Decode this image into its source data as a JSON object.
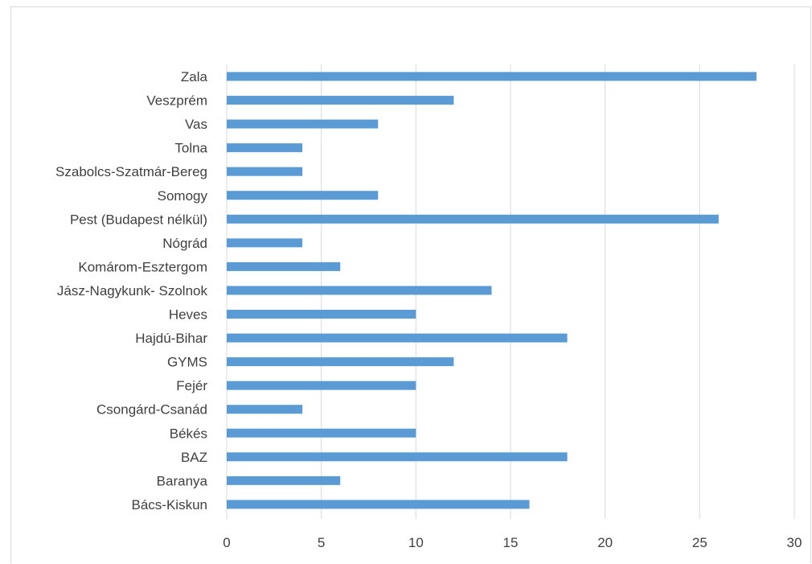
{
  "chart_data": {
    "type": "bar",
    "orientation": "horizontal",
    "title": "",
    "xlabel": "",
    "ylabel": "",
    "categories": [
      "Zala",
      "Veszprém",
      "Vas",
      "Tolna",
      "Szabolcs-Szatmár-Bereg",
      "Somogy",
      "Pest (Budapest nélkül)",
      "Nógrád",
      "Komárom-Esztergom",
      "Jász-Nagykunk- Szolnok",
      "Heves",
      "Hajdú-Bihar",
      "GYMS",
      "Fejér",
      "Csongárd-Csanád",
      "Békés",
      "BAZ",
      "Baranya",
      "Bács-Kiskun"
    ],
    "values": [
      28,
      12,
      8,
      4,
      4,
      8,
      26,
      4,
      6,
      14,
      10,
      18,
      12,
      10,
      4,
      10,
      18,
      6,
      16
    ],
    "xlim": [
      0,
      30
    ],
    "xticks": [
      "0",
      "5",
      "10",
      "15",
      "20",
      "25",
      "30"
    ],
    "grid": "vertical",
    "legend": "none",
    "bar_color": "#5b9bd5",
    "grid_color": "#d9d9d9",
    "text_color": "#404040"
  }
}
